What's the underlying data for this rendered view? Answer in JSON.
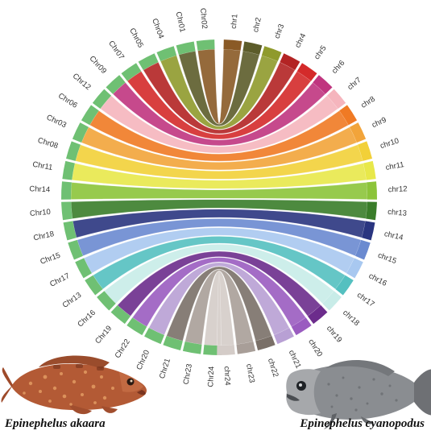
{
  "left_genome": {
    "species": "Epinephelus akaara",
    "chromosomes": [
      "Chr02",
      "Chr01",
      "Chr04",
      "Chr05",
      "Chr07",
      "Chr09",
      "Chr12",
      "Chr06",
      "Chr03",
      "Chr08",
      "Chr11",
      "Chr14",
      "Chr10",
      "Chr18",
      "Chr15",
      "Chr17",
      "Chr13",
      "Chr16",
      "Chr19",
      "Chr22",
      "Chr20",
      "Chr21",
      "Chr23",
      "Chr24"
    ]
  },
  "right_genome": {
    "species": "Epinephelus cyanopodus",
    "chromosomes": [
      "chr1",
      "chr2",
      "chr3",
      "chr4",
      "chr5",
      "chr6",
      "chr7",
      "chr8",
      "chr9",
      "chr10",
      "chr11",
      "chr12",
      "chr13",
      "chr14",
      "chr15",
      "chr16",
      "chr17",
      "chr18",
      "chr19",
      "chr20",
      "chr21",
      "chr22",
      "chr23",
      "chr24"
    ]
  },
  "links": [
    {
      "from": "Chr02",
      "to": "chr1",
      "color": "#8a5a26"
    },
    {
      "from": "Chr01",
      "to": "chr2",
      "color": "#5c5c2a"
    },
    {
      "from": "Chr04",
      "to": "chr3",
      "color": "#8f9a2c"
    },
    {
      "from": "Chr05",
      "to": "chr4",
      "color": "#b32424"
    },
    {
      "from": "Chr07",
      "to": "chr5",
      "color": "#d42a2a"
    },
    {
      "from": "Chr09",
      "to": "chr6",
      "color": "#c0357f"
    },
    {
      "from": "Chr12",
      "to": "chr7",
      "color": "#f5b5bd"
    },
    {
      "from": "Chr06",
      "to": "chr8",
      "color": "#f07a24"
    },
    {
      "from": "Chr03",
      "to": "chr9",
      "color": "#f2a43a"
    },
    {
      "from": "Chr08",
      "to": "chr10",
      "color": "#f2d038"
    },
    {
      "from": "Chr11",
      "to": "chr11",
      "color": "#e8e84a"
    },
    {
      "from": "Chr14",
      "to": "chr12",
      "color": "#8cc43a"
    },
    {
      "from": "Chr10",
      "to": "chr13",
      "color": "#3a7d2a"
    },
    {
      "from": "Chr18",
      "to": "chr14",
      "color": "#2a3580"
    },
    {
      "from": "Chr15",
      "to": "chr15",
      "color": "#6a8ad0"
    },
    {
      "from": "Chr17",
      "to": "chr16",
      "color": "#a8c8f0"
    },
    {
      "from": "Chr13",
      "to": "chr17",
      "color": "#54c0c0"
    },
    {
      "from": "Chr16",
      "to": "chr18",
      "color": "#c8ece8"
    },
    {
      "from": "Chr19",
      "to": "chr19",
      "color": "#6c2c8c"
    },
    {
      "from": "Chr22",
      "to": "chr20",
      "color": "#9a5cc0"
    },
    {
      "from": "Chr20",
      "to": "chr21",
      "color": "#b8a0d4"
    },
    {
      "from": "Chr21",
      "to": "chr22",
      "color": "#7a7068"
    },
    {
      "from": "Chr23",
      "to": "chr23",
      "color": "#a89e98"
    },
    {
      "from": "Chr24",
      "to": "chr24",
      "color": "#d4ccc8"
    }
  ],
  "colors": {
    "left_ring": "#6fc073",
    "background": "#ffffff",
    "label_text": "#333333"
  },
  "images": [
    {
      "name": "fish-epinephelus-akaara",
      "color": "#b45b36"
    },
    {
      "name": "fish-epinephelus-cyanopodus",
      "color": "#8e9094"
    }
  ]
}
